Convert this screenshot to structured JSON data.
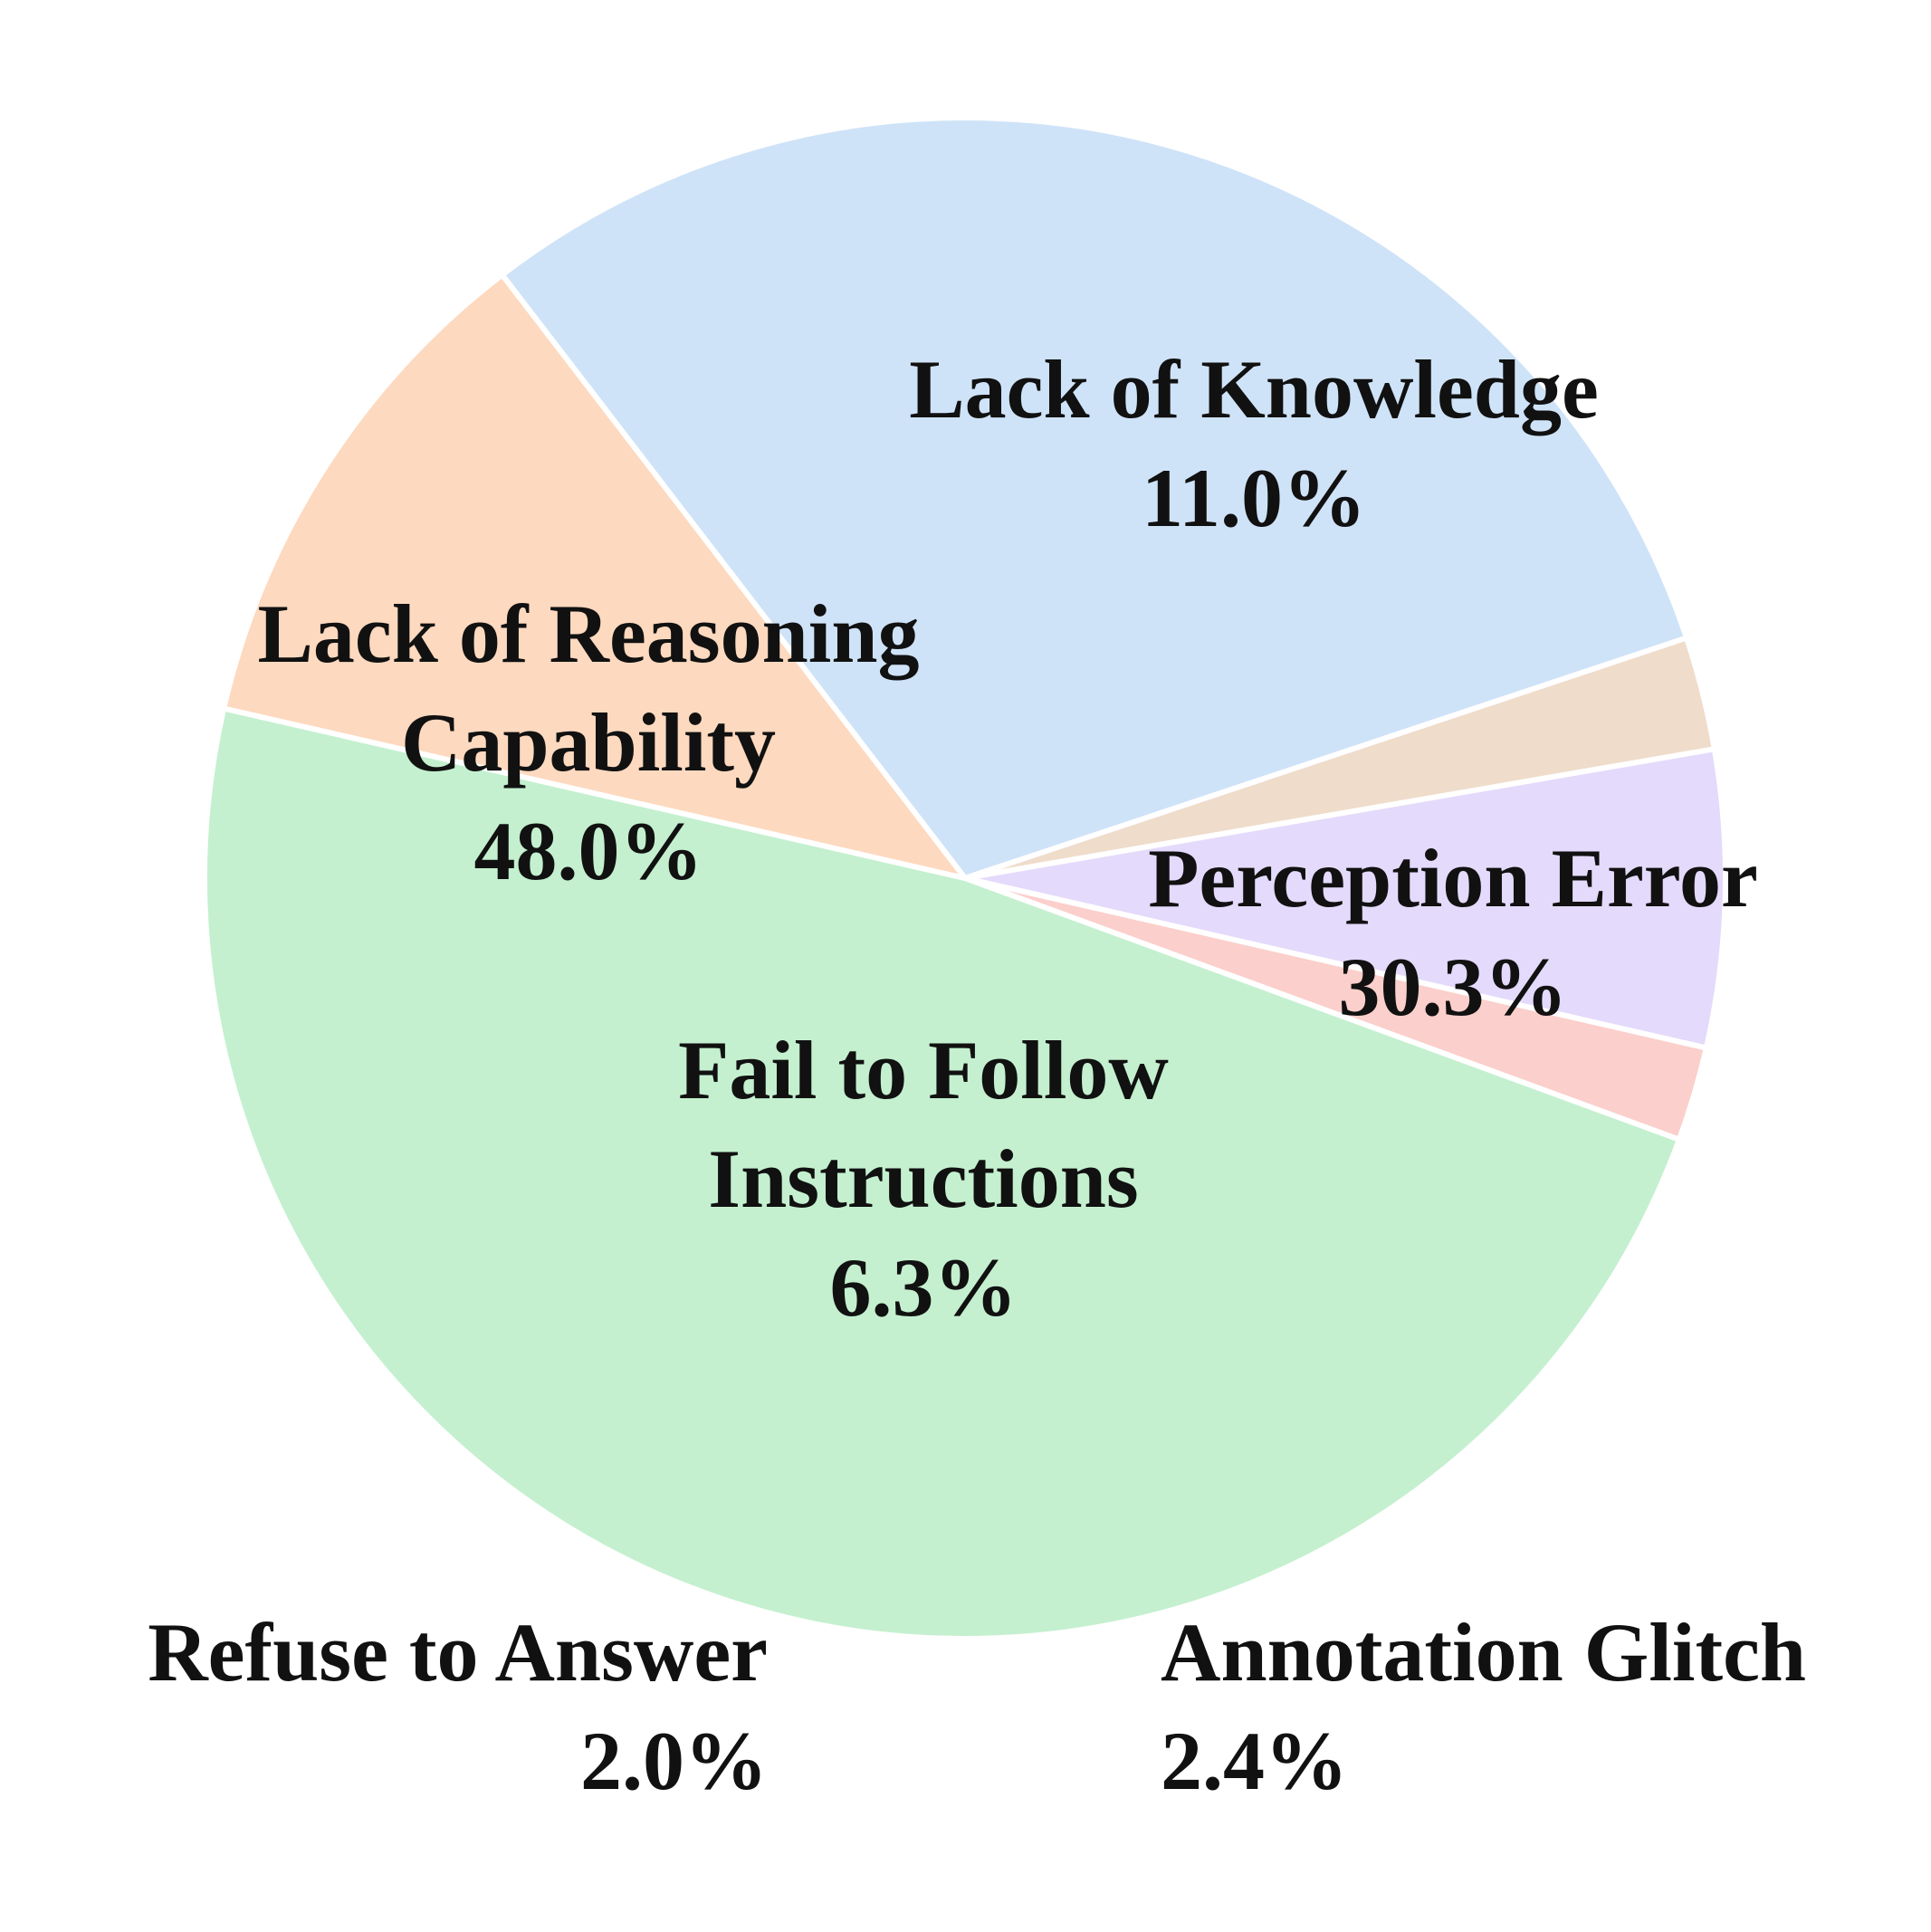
{
  "chart_data": {
    "type": "pie",
    "title": "",
    "slices": [
      {
        "label": "Perception Error",
        "label_lines": [
          "Perception Error"
        ],
        "value": 30.3,
        "value_text": "30.3%",
        "color": "#cfe3f8"
      },
      {
        "label": "Annotation Glitch",
        "label_lines": [
          "Annotation Glitch"
        ],
        "value": 2.4,
        "value_text": "2.4%",
        "color": "#efdccb"
      },
      {
        "label": "Fail to Follow Instructions",
        "label_lines": [
          "Fail to Follow",
          "Instructions"
        ],
        "value": 6.3,
        "value_text": "6.3%",
        "color": "#e4dafb"
      },
      {
        "label": "Refuse to Answer",
        "label_lines": [
          "Refuse to Answer"
        ],
        "value": 2.0,
        "value_text": "2.0%",
        "color": "#fbcfcb"
      },
      {
        "label": "Lack of Reasoning Capability",
        "label_lines": [
          "Lack of Reasoning",
          "Capability"
        ],
        "value": 48.0,
        "value_text": "48.0%",
        "color": "#c4f0cf"
      },
      {
        "label": "Lack of Knowledge",
        "label_lines": [
          "Lack of Knowledge"
        ],
        "value": 11.0,
        "value_text": "11.0%",
        "color": "#fdd9bf"
      }
    ]
  }
}
